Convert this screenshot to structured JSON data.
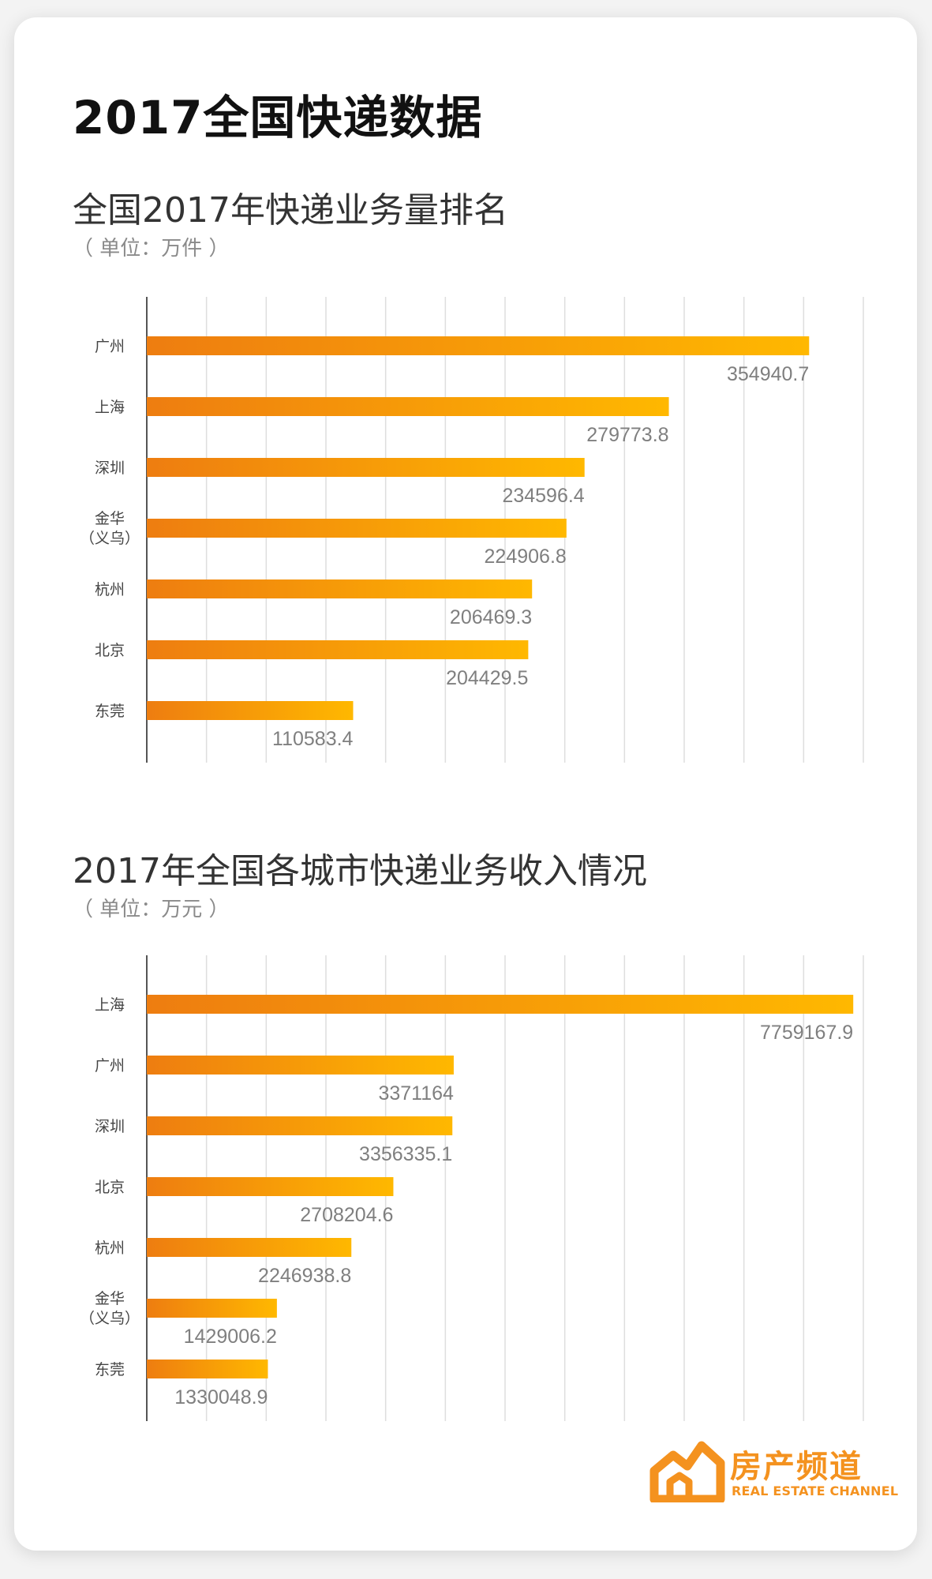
{
  "header": {
    "main_title": "2017全国快递数据"
  },
  "colors": {
    "bar_start": "#ee7d10",
    "bar_end": "#ffb800",
    "grid": "#dedede",
    "axis": "#555555",
    "brand": "#f4921f"
  },
  "chart_data": [
    {
      "type": "bar",
      "orientation": "horizontal",
      "title": "全国2017年快递业务量排名",
      "unit": "（ 单位：万件 ）",
      "categories": [
        "广州",
        "上海",
        "深圳",
        "金华\n（义乌）",
        "杭州",
        "北京",
        "东莞"
      ],
      "values": [
        354940.7,
        279773.8,
        234596.4,
        224906.8,
        206469.3,
        204429.5,
        110583.4
      ],
      "value_labels": [
        "354940.7",
        "279773.8",
        "234596.4",
        "224906.8",
        "206469.3",
        "204429.5",
        "110583.4"
      ],
      "xlim": [
        0,
        384000
      ],
      "grid": true
    },
    {
      "type": "bar",
      "orientation": "horizontal",
      "title": "2017年全国各城市快递业务收入情况",
      "unit": "（ 单位：万元 ）",
      "categories": [
        "上海",
        "广州",
        "深圳",
        "北京",
        "杭州",
        "金华\n（义乌）",
        "东莞"
      ],
      "values": [
        7759167.9,
        3371164,
        3356335.1,
        2708204.6,
        2246938.8,
        1429006.2,
        1330048.9
      ],
      "value_labels": [
        "7759167.9",
        "3371164",
        "3356335.1",
        "2708204.6",
        "2246938.8",
        "1429006.2",
        "1330048.9"
      ],
      "xlim": [
        0,
        7870000
      ],
      "grid": true
    }
  ],
  "brand": {
    "name": "房产频道",
    "subtitle": "REAL ESTATE CHANNEL",
    "logo_icon": "house-logo-icon"
  }
}
